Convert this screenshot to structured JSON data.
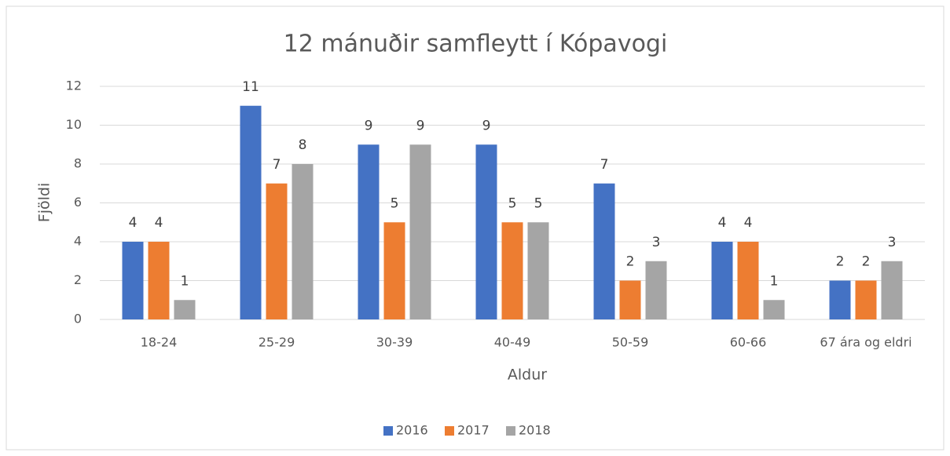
{
  "chart_data": {
    "type": "bar",
    "title": "12 mánuðir samfleytt í Kópavogi",
    "x_label": "Aldur",
    "y_label": "Fjöldi",
    "categories": [
      "18-24",
      "25-29",
      "30-39",
      "40-49",
      "50-59",
      "60-66",
      "67 ára og eldri"
    ],
    "series": [
      {
        "name": "2016",
        "color": "#4472c4",
        "values": [
          4,
          11,
          9,
          9,
          7,
          4,
          2
        ]
      },
      {
        "name": "2017",
        "color": "#ed7d31",
        "values": [
          4,
          7,
          5,
          5,
          2,
          4,
          2
        ]
      },
      {
        "name": "2018",
        "color": "#a5a5a5",
        "values": [
          1,
          8,
          9,
          5,
          3,
          1,
          3
        ]
      }
    ],
    "ylim": [
      0,
      12
    ],
    "yticks": [
      0,
      2,
      4,
      6,
      8,
      10,
      12
    ],
    "grid": true,
    "legend": "bottom"
  }
}
